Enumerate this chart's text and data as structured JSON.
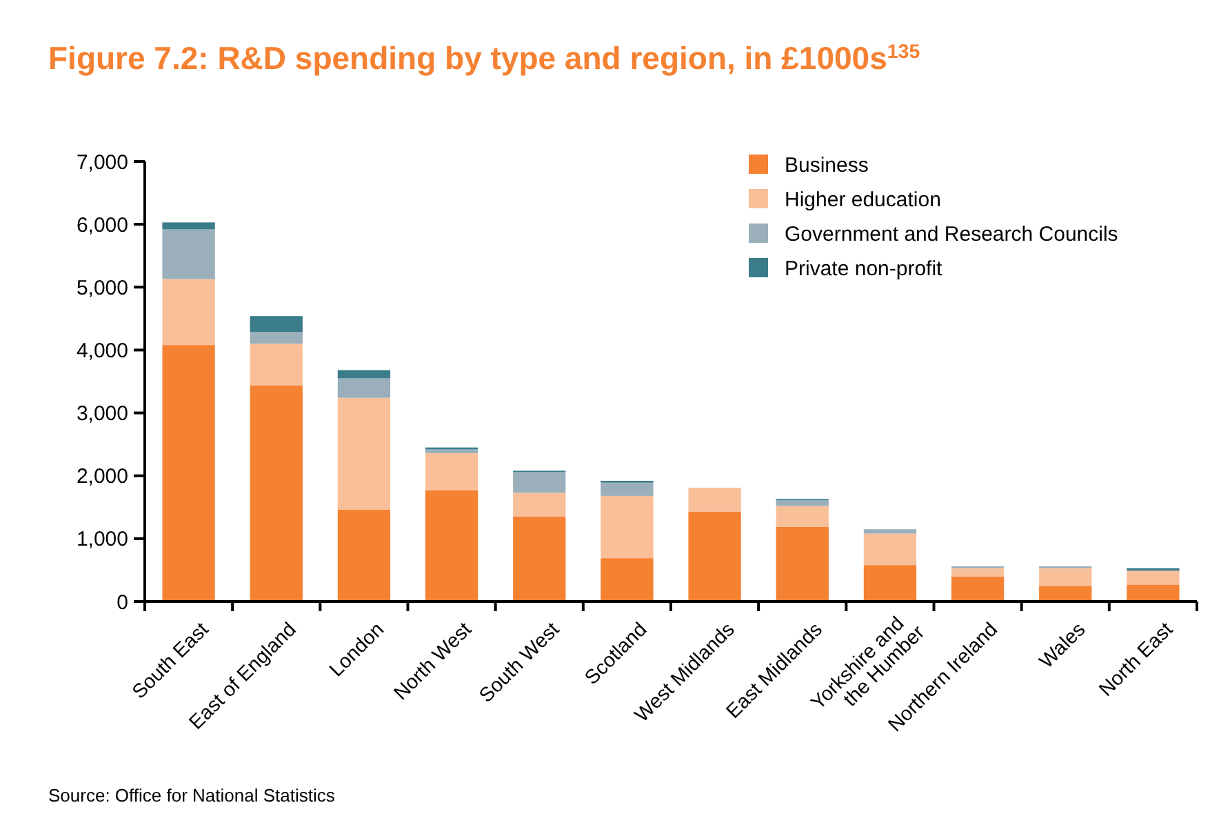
{
  "chart_data": {
    "type": "bar",
    "title": "Figure 7.2: R&D spending by type and region, in £1000s$^{135}$",
    "categories": [
      "South East",
      "East of England",
      "London",
      "North West",
      "South West",
      "Scotland",
      "West Midlands",
      "East Midlands",
      "Yorkshire and the Humber",
      "Northern Ireland",
      "Wales",
      "North East"
    ],
    "stacked": true,
    "ylim": [
      0,
      7000
    ],
    "yticks": [
      {
        "value": 0,
        "label": "0"
      },
      {
        "value": 1000,
        "label": "1,000"
      },
      {
        "value": 2000,
        "label": "2,000"
      },
      {
        "value": 3000,
        "label": "3,000"
      },
      {
        "value": 4000,
        "label": "4,000"
      },
      {
        "value": 5000,
        "label": "5,000"
      },
      {
        "value": 6000,
        "label": "6,000"
      },
      {
        "value": 7000,
        "label": "7,000"
      }
    ],
    "series": [
      {
        "name": "Business",
        "color": "#f58132",
        "values": [
          4080,
          3440,
          1460,
          1770,
          1350,
          690,
          1430,
          1190,
          580,
          400,
          250,
          270
        ]
      },
      {
        "name": "Higher education",
        "color": "#f9bf99",
        "values": [
          1050,
          660,
          1780,
          590,
          380,
          990,
          380,
          330,
          500,
          130,
          280,
          220
        ]
      },
      {
        "name": "Government and Research Councils",
        "color": "#9aafba",
        "values": [
          790,
          190,
          310,
          60,
          330,
          210,
          0,
          90,
          70,
          30,
          30,
          0
        ]
      },
      {
        "name": "Private non-profit",
        "color": "#3a7c8a",
        "values": [
          110,
          250,
          130,
          30,
          20,
          30,
          0,
          20,
          0,
          0,
          0,
          40
        ]
      }
    ],
    "legend": "top right",
    "grid": false,
    "annotations": [
      "Source: Office for National Statistics"
    ]
  }
}
